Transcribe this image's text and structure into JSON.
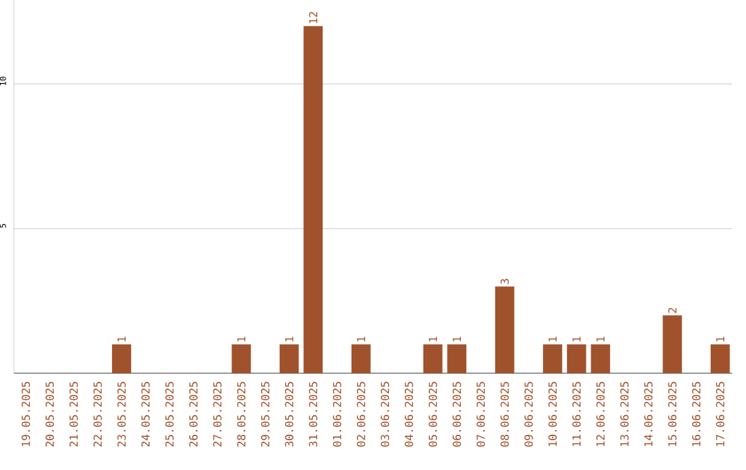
{
  "chart_data": {
    "type": "bar",
    "categories": [
      "19.05.2025",
      "20.05.2025",
      "21.05.2025",
      "22.05.2025",
      "23.05.2025",
      "24.05.2025",
      "25.05.2025",
      "26.05.2025",
      "27.05.2025",
      "28.05.2025",
      "29.05.2025",
      "30.05.2025",
      "31.05.2025",
      "01.06.2025",
      "02.06.2025",
      "03.06.2025",
      "04.06.2025",
      "05.06.2025",
      "06.06.2025",
      "07.06.2025",
      "08.06.2025",
      "09.06.2025",
      "10.06.2025",
      "11.06.2025",
      "12.06.2025",
      "13.06.2025",
      "14.06.2025",
      "15.06.2025",
      "16.06.2025",
      "17.06.2025"
    ],
    "values": [
      0,
      0,
      0,
      0,
      1,
      0,
      0,
      0,
      0,
      1,
      0,
      1,
      12,
      0,
      1,
      0,
      0,
      1,
      1,
      0,
      3,
      0,
      1,
      1,
      1,
      0,
      0,
      2,
      0,
      1
    ],
    "value_labels": [
      null,
      null,
      null,
      null,
      "1",
      null,
      null,
      null,
      null,
      "1",
      null,
      "1",
      "12",
      null,
      "1",
      null,
      null,
      "1",
      "1",
      null,
      "3",
      null,
      "1",
      "1",
      "1",
      null,
      null,
      "2",
      null,
      "1"
    ],
    "color": "#a0522d",
    "ylim": [
      0,
      12.9
    ],
    "yticks": [
      5,
      10
    ],
    "grid": "y"
  }
}
